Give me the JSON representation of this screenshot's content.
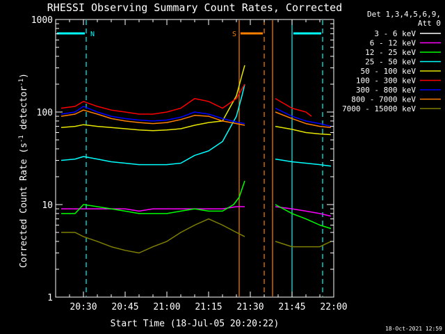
{
  "chart_data": {
    "type": "line",
    "title": "RHESSI Observing Summary Count Rates, Corrected",
    "xlabel": "Start Time (18-Jul-05 20:20:22)",
    "ylabel_main": "Corrected Count Rate (s",
    "ylabel_sup1": "-1",
    "ylabel_mid": " detector",
    "ylabel_sup2": "-1",
    "ylabel_end": ")",
    "x_unit": "minutes since 20:20",
    "xlim": [
      "20:20",
      "22:00"
    ],
    "ylim": [
      1,
      1000
    ],
    "yscale": "log",
    "x_ticks": [
      "20:30",
      "20:45",
      "21:00",
      "21:15",
      "21:30",
      "21:45",
      "22:00"
    ],
    "y_ticks": [
      "1",
      "10",
      "100",
      "1000"
    ],
    "legend_header": [
      "Det 1,3,4,5,6,9,",
      "Att 0"
    ],
    "legend_position": "right",
    "footer_date": "18-Oct-2021 12:59",
    "flags": [
      {
        "label": "N",
        "color": "#00ffff",
        "time": [
          "20:20",
          "20:31"
        ]
      },
      {
        "label": "S",
        "color": "#ff8000",
        "time": [
          "21:26",
          "21:35"
        ]
      },
      {
        "label": "",
        "color": "#00ffff",
        "time": [
          "21:45",
          "21:56"
        ]
      }
    ],
    "vlines": [
      {
        "time": "20:31",
        "color": "#00ffff",
        "style": "dashed"
      },
      {
        "time": "21:26",
        "color": "#ff8000",
        "style": "solid"
      },
      {
        "time": "21:35",
        "color": "#ff8000",
        "style": "dashed"
      },
      {
        "time": "21:38",
        "color": "#ff8000",
        "style": "solid"
      },
      {
        "time": "21:45",
        "color": "#00ffff",
        "style": "solid"
      },
      {
        "time": "21:56",
        "color": "#00ffff",
        "style": "dashed"
      }
    ],
    "series": [
      {
        "name": "3 - 6 keV",
        "color": "#ffffff",
        "points": [
          [
            0,
            1
          ],
          [
            100,
            1
          ]
        ]
      },
      {
        "name": "6 - 12 keV",
        "color": "#ff00ff",
        "points": [
          [
            2,
            9
          ],
          [
            7,
            9
          ],
          [
            10,
            9
          ],
          [
            15,
            9
          ],
          [
            20,
            9
          ],
          [
            25,
            9
          ],
          [
            30,
            8.5
          ],
          [
            35,
            9
          ],
          [
            40,
            9
          ],
          [
            45,
            9
          ],
          [
            50,
            9
          ],
          [
            55,
            9
          ],
          [
            60,
            9
          ],
          [
            65,
            9.5
          ],
          [
            68,
            9.5
          ],
          [
            79,
            9.5
          ],
          [
            85,
            9
          ],
          [
            90,
            8.5
          ],
          [
            95,
            8
          ],
          [
            99,
            7.5
          ]
        ]
      },
      {
        "name": "12 - 25 keV",
        "color": "#00ff00",
        "points": [
          [
            2,
            8
          ],
          [
            7,
            8
          ],
          [
            10,
            10
          ],
          [
            15,
            9.5
          ],
          [
            20,
            9
          ],
          [
            25,
            8.5
          ],
          [
            30,
            8
          ],
          [
            35,
            8
          ],
          [
            40,
            8
          ],
          [
            45,
            8.5
          ],
          [
            50,
            9
          ],
          [
            55,
            8.5
          ],
          [
            60,
            8.5
          ],
          [
            64,
            10
          ],
          [
            66,
            12
          ],
          [
            68,
            18
          ],
          [
            79,
            10
          ],
          [
            85,
            8
          ],
          [
            90,
            7
          ],
          [
            95,
            6
          ],
          [
            99,
            5.5
          ]
        ]
      },
      {
        "name": "25 - 50 keV",
        "color": "#00ffff",
        "points": [
          [
            2,
            30
          ],
          [
            7,
            31
          ],
          [
            10,
            33
          ],
          [
            15,
            31
          ],
          [
            20,
            29
          ],
          [
            25,
            28
          ],
          [
            30,
            27
          ],
          [
            35,
            27
          ],
          [
            40,
            27
          ],
          [
            45,
            28
          ],
          [
            50,
            34
          ],
          [
            55,
            38
          ],
          [
            60,
            48
          ],
          [
            65,
            90
          ],
          [
            67,
            150
          ],
          [
            68,
            200
          ],
          [
            79,
            31
          ],
          [
            85,
            29
          ],
          [
            90,
            28
          ],
          [
            95,
            27
          ],
          [
            99,
            26
          ]
        ]
      },
      {
        "name": "50 - 100 keV",
        "color": "#e6e600",
        "points": [
          [
            2,
            68
          ],
          [
            7,
            70
          ],
          [
            10,
            73
          ],
          [
            15,
            70
          ],
          [
            20,
            68
          ],
          [
            25,
            66
          ],
          [
            30,
            64
          ],
          [
            35,
            63
          ],
          [
            40,
            64
          ],
          [
            45,
            66
          ],
          [
            50,
            72
          ],
          [
            55,
            77
          ],
          [
            60,
            80
          ],
          [
            65,
            150
          ],
          [
            67,
            250
          ],
          [
            68,
            320
          ],
          [
            79,
            70
          ],
          [
            85,
            65
          ],
          [
            90,
            60
          ],
          [
            95,
            58
          ],
          [
            99,
            57
          ]
        ]
      },
      {
        "name": "100 - 300 keV",
        "color": "#ff0000",
        "points": [
          [
            2,
            110
          ],
          [
            7,
            115
          ],
          [
            10,
            130
          ],
          [
            15,
            115
          ],
          [
            20,
            105
          ],
          [
            25,
            100
          ],
          [
            30,
            95
          ],
          [
            35,
            95
          ],
          [
            40,
            100
          ],
          [
            45,
            110
          ],
          [
            50,
            140
          ],
          [
            55,
            130
          ],
          [
            60,
            110
          ],
          [
            65,
            140
          ],
          [
            68,
            200
          ],
          [
            79,
            140
          ],
          [
            85,
            110
          ],
          [
            90,
            100
          ],
          [
            92,
            90
          ],
          [
            99,
            90
          ]
        ]
      },
      {
        "name": "300 - 800 keV",
        "color": "#0000ff",
        "points": [
          [
            2,
            95
          ],
          [
            7,
            100
          ],
          [
            10,
            115
          ],
          [
            15,
            100
          ],
          [
            20,
            90
          ],
          [
            25,
            85
          ],
          [
            30,
            82
          ],
          [
            35,
            80
          ],
          [
            40,
            82
          ],
          [
            45,
            88
          ],
          [
            50,
            100
          ],
          [
            55,
            95
          ],
          [
            60,
            85
          ],
          [
            65,
            78
          ],
          [
            68,
            75
          ],
          [
            79,
            110
          ],
          [
            85,
            90
          ],
          [
            90,
            80
          ],
          [
            95,
            75
          ],
          [
            99,
            70
          ]
        ]
      },
      {
        "name": "800 - 7000 keV",
        "color": "#ff8000",
        "points": [
          [
            2,
            90
          ],
          [
            7,
            95
          ],
          [
            10,
            105
          ],
          [
            15,
            95
          ],
          [
            20,
            85
          ],
          [
            25,
            80
          ],
          [
            30,
            77
          ],
          [
            35,
            75
          ],
          [
            40,
            77
          ],
          [
            45,
            83
          ],
          [
            50,
            92
          ],
          [
            55,
            90
          ],
          [
            60,
            80
          ],
          [
            65,
            75
          ],
          [
            68,
            72
          ],
          [
            79,
            100
          ],
          [
            85,
            85
          ],
          [
            90,
            75
          ],
          [
            95,
            70
          ],
          [
            99,
            68
          ]
        ]
      },
      {
        "name": "7000 - 15000 keV",
        "color": "#808000",
        "points": [
          [
            2,
            5
          ],
          [
            7,
            5
          ],
          [
            10,
            4.5
          ],
          [
            15,
            4
          ],
          [
            20,
            3.5
          ],
          [
            25,
            3.2
          ],
          [
            30,
            3
          ],
          [
            35,
            3.5
          ],
          [
            40,
            4
          ],
          [
            45,
            5
          ],
          [
            50,
            6
          ],
          [
            55,
            7
          ],
          [
            60,
            6
          ],
          [
            65,
            5
          ],
          [
            68,
            4.5
          ],
          [
            79,
            4
          ],
          [
            85,
            3.5
          ],
          [
            90,
            3.5
          ],
          [
            95,
            3.5
          ],
          [
            99,
            4
          ]
        ]
      }
    ]
  }
}
